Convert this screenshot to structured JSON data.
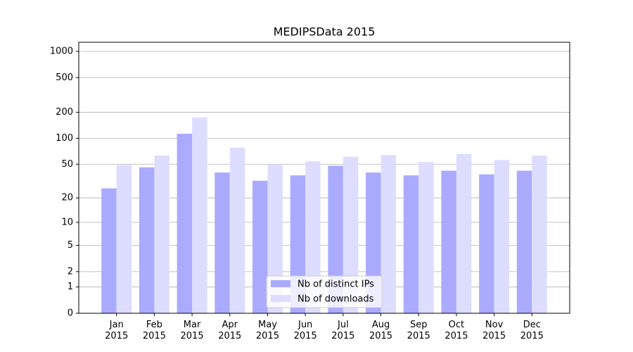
{
  "chart_data": {
    "type": "bar",
    "title": "MEDIPSData 2015",
    "categories": [
      "Jan\n2015",
      "Feb\n2015",
      "Mar\n2015",
      "Apr\n2015",
      "May\n2015",
      "Jun\n2015",
      "Jul\n2015",
      "Aug\n2015",
      "Sep\n2015",
      "Oct\n2015",
      "Nov\n2015",
      "Dec\n2015"
    ],
    "series": [
      {
        "name": "Nb of distinct IPs",
        "color": "#aaaaff",
        "values": [
          26,
          46,
          113,
          40,
          32,
          37,
          48,
          40,
          37,
          42,
          38,
          42
        ]
      },
      {
        "name": "Nb of downloads",
        "color": "#ddddff",
        "values": [
          49,
          63,
          174,
          78,
          50,
          54,
          61,
          64,
          53,
          66,
          56,
          63
        ]
      }
    ],
    "yscale": "log1p",
    "ylim": [
      0,
      1273
    ],
    "yticks": [
      0,
      1,
      2,
      5,
      10,
      20,
      50,
      100,
      200,
      500,
      1000
    ],
    "grid": true,
    "legend": "lower center"
  }
}
